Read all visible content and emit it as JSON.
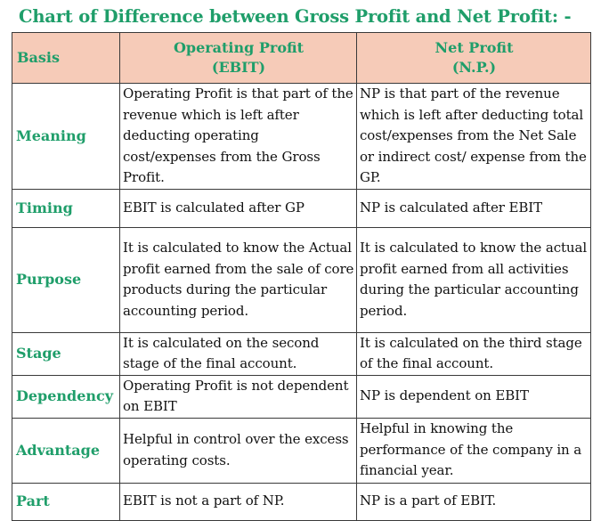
{
  "title": "Chart of Difference between Gross Profit and Net Profit: -",
  "colors": {
    "accent_green": "#1f9e6a",
    "header_fill": "#f6cbb8",
    "border": "#3a3a3a",
    "body_text": "#111111"
  },
  "table": {
    "headers": {
      "basis": "Basis",
      "col1_line1": "Operating Profit",
      "col1_line2": "(EBIT)",
      "col2_line1": "Net Profit",
      "col2_line2": "(N.P.)"
    },
    "rows": [
      {
        "basis": "Meaning",
        "operating": "Operating Profit is that part of the revenue which is left after deducting operating cost/expenses from the Gross Profit.",
        "net": "NP is that part of the revenue which is left after deducting total cost/expenses from the Net Sale or indirect cost/ expense from the GP."
      },
      {
        "basis": "Timing",
        "operating": "EBIT is calculated after GP",
        "net": "NP is calculated after EBIT"
      },
      {
        "basis": "Purpose",
        "operating": "It is calculated to know the Actual profit earned from the sale of core products during the particular accounting period.",
        "net": "It is calculated to know the actual profit earned from all activities during the particular accounting period."
      },
      {
        "basis": "Stage",
        "operating": "It is calculated on the second stage of the final account.",
        "net": "It is calculated on the third stage of the final account."
      },
      {
        "basis": "Dependency",
        "operating": "Operating Profit is not dependent on EBIT",
        "net": "NP is dependent on EBIT"
      },
      {
        "basis": "Advantage",
        "operating": "Helpful in control over the excess operating costs.",
        "net": "Helpful in knowing the performance of the company in a financial year."
      },
      {
        "basis": "Part",
        "operating": "EBIT is not a part of NP.",
        "net": "NP is a part of EBIT."
      }
    ]
  }
}
